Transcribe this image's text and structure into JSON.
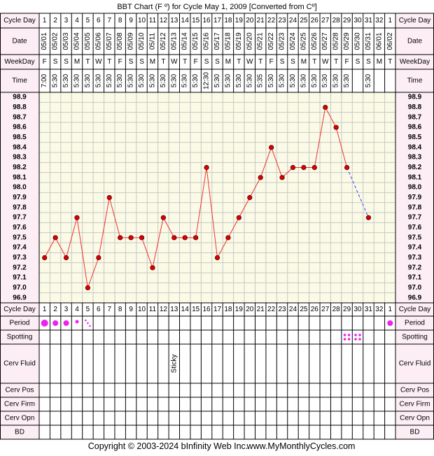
{
  "chart_data": {
    "type": "line",
    "title": "BBT Chart (F º) for Cycle May 1, 2009  [Converted from Cº]",
    "row_labels": {
      "cycle_day": "Cycle Day",
      "date": "Date",
      "weekday": "WeekDay",
      "time": "Time",
      "period": "Period",
      "spotting": "Spotting",
      "cerv_fluid": "Cerv Fluid",
      "cerv_pos": "Cerv Pos",
      "cerv_firm": "Cerv Firm",
      "cerv_opn": "Cerv Opn",
      "bd": "BD"
    },
    "cycle_days": [
      "1",
      "2",
      "3",
      "4",
      "5",
      "6",
      "7",
      "8",
      "9",
      "10",
      "11",
      "12",
      "13",
      "14",
      "15",
      "16",
      "17",
      "18",
      "19",
      "20",
      "21",
      "22",
      "23",
      "24",
      "25",
      "26",
      "27",
      "28",
      "29",
      "30",
      "31",
      "32",
      "1"
    ],
    "dates": [
      "05/01",
      "05/02",
      "05/03",
      "05/04",
      "05/05",
      "05/06",
      "05/07",
      "05/08",
      "05/09",
      "05/10",
      "05/11",
      "05/12",
      "05/13",
      "05/14",
      "05/15",
      "05/16",
      "05/17",
      "05/18",
      "05/19",
      "05/20",
      "05/21",
      "05/22",
      "05/23",
      "05/24",
      "05/25",
      "05/26",
      "05/27",
      "05/28",
      "05/29",
      "05/30",
      "05/31",
      "06/01",
      "06/02"
    ],
    "weekdays": [
      "F",
      "S",
      "S",
      "M",
      "T",
      "W",
      "T",
      "F",
      "S",
      "S",
      "M",
      "T",
      "W",
      "T",
      "F",
      "S",
      "S",
      "M",
      "T",
      "W",
      "T",
      "F",
      "S",
      "S",
      "M",
      "T",
      "W",
      "T",
      "F",
      "S",
      "S",
      "M",
      "T"
    ],
    "times": [
      "7:00",
      "5:30",
      "5:30",
      "5:30",
      "5:30",
      "5:30",
      "5:30",
      "5:30",
      "5:30",
      "5:30",
      "5:30",
      "5:30",
      "5:30",
      "5:30",
      "5:30",
      "12:30",
      "5:30",
      "5:30",
      "5:30",
      "5:30",
      "5:35",
      "5:30",
      "5:30",
      "5:30",
      "5:30",
      "5:30",
      "5:30",
      "5:30",
      "5:30",
      "",
      "5:30",
      "",
      ""
    ],
    "temperatures": [
      97.3,
      97.5,
      97.3,
      97.7,
      97.0,
      97.3,
      97.9,
      97.5,
      97.5,
      97.5,
      97.2,
      97.7,
      97.5,
      97.5,
      97.5,
      98.2,
      97.3,
      97.5,
      97.7,
      97.9,
      98.1,
      98.4,
      98.1,
      98.2,
      98.2,
      98.2,
      98.8,
      98.6,
      98.2,
      null,
      97.7,
      null,
      null
    ],
    "y_ticks": [
      "98.9",
      "98.8",
      "98.7",
      "98.6",
      "98.5",
      "98.4",
      "98.3",
      "98.2",
      "98.1",
      "98.0",
      "97.9",
      "97.8",
      "97.7",
      "97.6",
      "97.5",
      "97.4",
      "97.3",
      "97.2",
      "97.1",
      "97.0",
      "96.9"
    ],
    "ylim": [
      96.9,
      98.9
    ],
    "period": [
      "heavy",
      "medium",
      "medium",
      "light",
      "spotting",
      "",
      "",
      "",
      "",
      "",
      "",
      "",
      "",
      "",
      "",
      "",
      "",
      "",
      "",
      "",
      "",
      "",
      "",
      "",
      "",
      "",
      "",
      "",
      "",
      "",
      "",
      "",
      "medium"
    ],
    "spotting": [
      "",
      "",
      "",
      "",
      "",
      "",
      "",
      "",
      "",
      "",
      "",
      "",
      "",
      "",
      "",
      "",
      "",
      "",
      "",
      "",
      "",
      "",
      "",
      "",
      "",
      "",
      "",
      "",
      "yes",
      "yes",
      "",
      "",
      ""
    ],
    "cerv_fluid": [
      "",
      "",
      "",
      "",
      "",
      "",
      "",
      "",
      "",
      "",
      "",
      "",
      "Sticky",
      "",
      "",
      "",
      "",
      "",
      "",
      "",
      "",
      "",
      "",
      "",
      "",
      "",
      "",
      "",
      "",
      "",
      "",
      "",
      ""
    ],
    "grid": true,
    "colors": {
      "line": "#ee3333",
      "dot": "#dd0000",
      "dash": "#3344ee",
      "period": "#ee22ee",
      "label_bg": "#fdeef5",
      "plot_bg": "#fafae6",
      "grid": "#c8c8c8"
    }
  },
  "footer": {
    "copyright": "Copyright © 2003-2024 bInfinity Web Inc.",
    "site": "www.MyMonthlyCycles.com"
  }
}
